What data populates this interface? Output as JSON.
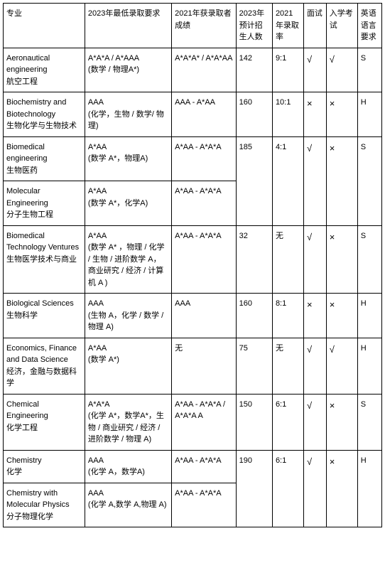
{
  "table": {
    "headers": {
      "major": "专业",
      "min_req": "2023年最低录取要求",
      "achieved": "2021年获录取者成绩",
      "intake": "2023年预计招生人数",
      "rate": "2021年录取率",
      "interview": "面试",
      "exam": "入学考试",
      "english": "英语语言要求"
    },
    "rows": [
      {
        "major": "Aeronautical engineering\n航空工程",
        "min_req": "A*A*A / A*AAA\n(数学 / 物理A*)",
        "achieved": "A*A*A* / A*A*AA",
        "intake": "142",
        "rate": "9:1",
        "interview": "√",
        "exam": "√",
        "english": "S"
      },
      {
        "major": "Biochemistry and Biotechnology\n生物化学与生物技术",
        "min_req": "AAA\n(化学，生物 / 数学/ 物理)",
        "achieved": "AAA - A*AA",
        "intake": "160",
        "rate": "10:1",
        "interview": "×",
        "exam": "×",
        "english": "H"
      },
      {
        "major": "Biomedical engineering\n生物医药",
        "min_req": "A*AA\n(数学 A*，物理A)",
        "achieved": "A*AA - A*A*A",
        "intake": "185",
        "rate": "4:1",
        "interview": "√",
        "exam": "×",
        "english": "S",
        "intake_rowspan": 2,
        "rate_rowspan": 2,
        "interview_rowspan": 2,
        "exam_rowspan": 2,
        "english_rowspan": 2
      },
      {
        "major": "Molecular Engineering\n分子生物工程",
        "min_req": "A*AA\n(数学 A*，化学A)",
        "achieved": "A*AA - A*A*A",
        "merged": true
      },
      {
        "major": "Biomedical Technology Ventures\n生物医学技术与商业",
        "min_req": "A*AA\n(数学 A* ，物理 / 化学 / 生物 / 进阶数学 A，商业研究 / 经济 / 计算机 A )",
        "achieved": "A*AA - A*A*A",
        "intake": "32",
        "rate": "无",
        "interview": "√",
        "exam": "×",
        "english": "S"
      },
      {
        "major": "Biological Sciences\n生物科学",
        "min_req": "AAA\n(生物 A，化学 / 数学 / 物理 A)",
        "achieved": "AAA",
        "intake": "160",
        "rate": "8:1",
        "interview": "×",
        "exam": "×",
        "english": "H"
      },
      {
        "major": "Economics, Finance and Data Science\n经济，金融与数据科学",
        "min_req": "A*AA\n(数学 A*)",
        "achieved": "无",
        "intake": "75",
        "rate": "无",
        "interview": "√",
        "exam": "√",
        "english": "H"
      },
      {
        "major": "Chemical Engineering\n化学工程",
        "min_req": "A*A*A\n(化学 A*，数学A*，生物 / 商业研究 / 经济 / 进阶数学 / 物理 A)",
        "achieved": "A*AA - A*A*A / A*A*A A",
        "intake": "150",
        "rate": "6:1",
        "interview": "√",
        "exam": "×",
        "english": "S"
      },
      {
        "major": "Chemistry\n化学",
        "min_req": "AAA\n(化学 A，数学A)",
        "achieved": "A*AA - A*A*A",
        "intake": "190",
        "rate": "6:1",
        "interview": "√",
        "exam": "×",
        "english": "H",
        "intake_rowspan": 2,
        "rate_rowspan": 2,
        "interview_rowspan": 2,
        "exam_rowspan": 2,
        "english_rowspan": 2
      },
      {
        "major": "Chemistry with Molecular Physics\n分子物理化学",
        "min_req": "AAA\n(化学 A,数学 A,物理 A)",
        "achieved": "A*AA - A*A*A",
        "merged": true
      }
    ]
  }
}
